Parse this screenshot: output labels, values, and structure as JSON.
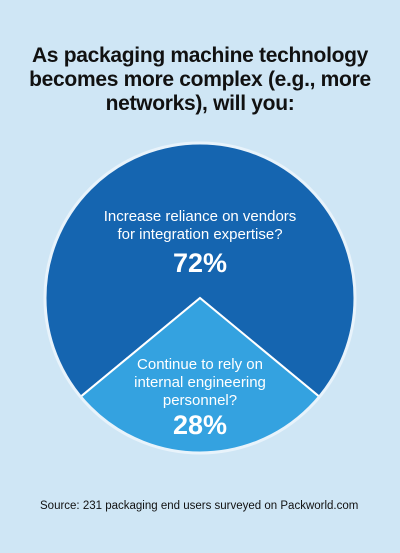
{
  "chart_data": {
    "type": "pie",
    "title": "As packaging machine technology becomes more complex (e.g., more networks), will you:",
    "categories": [
      "Increase reliance on vendors for integration expertise?",
      "Continue to rely on internal engineering personnel?"
    ],
    "values": [
      72,
      28
    ],
    "value_labels": [
      "72%",
      "28%"
    ],
    "colors": [
      "#1565b0",
      "#34a2e0"
    ],
    "source": "Source: 231 packaging end users surveyed on Packworld.com"
  }
}
